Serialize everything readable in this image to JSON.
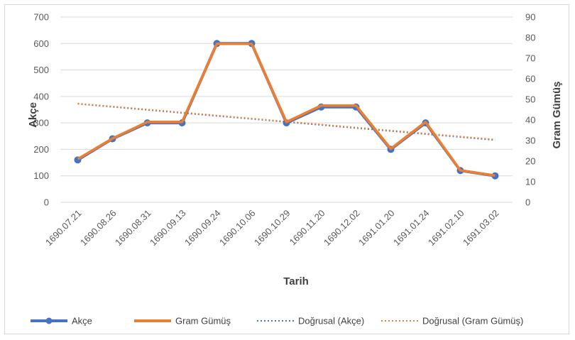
{
  "chart_data": {
    "type": "line",
    "x": [
      "1690.07.21",
      "1690.08.26",
      "1690.08.31",
      "1690.09.13",
      "1690.09.24",
      "1690.10.06",
      "1690.10.29",
      "1690.11.20",
      "1690.12.02",
      "1691.01.20",
      "1691.01.24",
      "1691.02.10",
      "1691.03.02"
    ],
    "xlabel": "Tarih",
    "ylabel_left": "Akçe",
    "ylabel_right": "Gram Gümüş",
    "ylim_left": [
      0,
      700
    ],
    "ylim_right": [
      0,
      90
    ],
    "yticks_left": [
      0,
      100,
      200,
      300,
      400,
      500,
      600,
      700
    ],
    "yticks_right": [
      0,
      10,
      20,
      30,
      40,
      50,
      60,
      70,
      80,
      90
    ],
    "grid": true,
    "legend_position": "bottom",
    "series": [
      {
        "name": "Akçe",
        "axis": "left",
        "color": "#4472c4",
        "marker": "circle",
        "values": [
          160,
          240,
          300,
          300,
          600,
          600,
          300,
          360,
          360,
          200,
          300,
          120,
          100
        ]
      },
      {
        "name": "Gram Gümüş",
        "axis": "right",
        "color": "#ed7d31",
        "values": [
          21,
          31,
          39,
          39,
          77,
          77,
          39,
          47,
          47,
          26,
          39,
          15.5,
          13
        ]
      }
    ],
    "trendlines": [
      {
        "name": "Doğrusal (Akçe)",
        "axis": "left",
        "color": "#4472c4",
        "style": "dotted",
        "start": 372,
        "end": 235
      },
      {
        "name": "Doğrusal (Gram Gümüş)",
        "axis": "right",
        "color": "#ed7d31",
        "style": "dotted",
        "start": 48,
        "end": 30.5
      }
    ]
  }
}
